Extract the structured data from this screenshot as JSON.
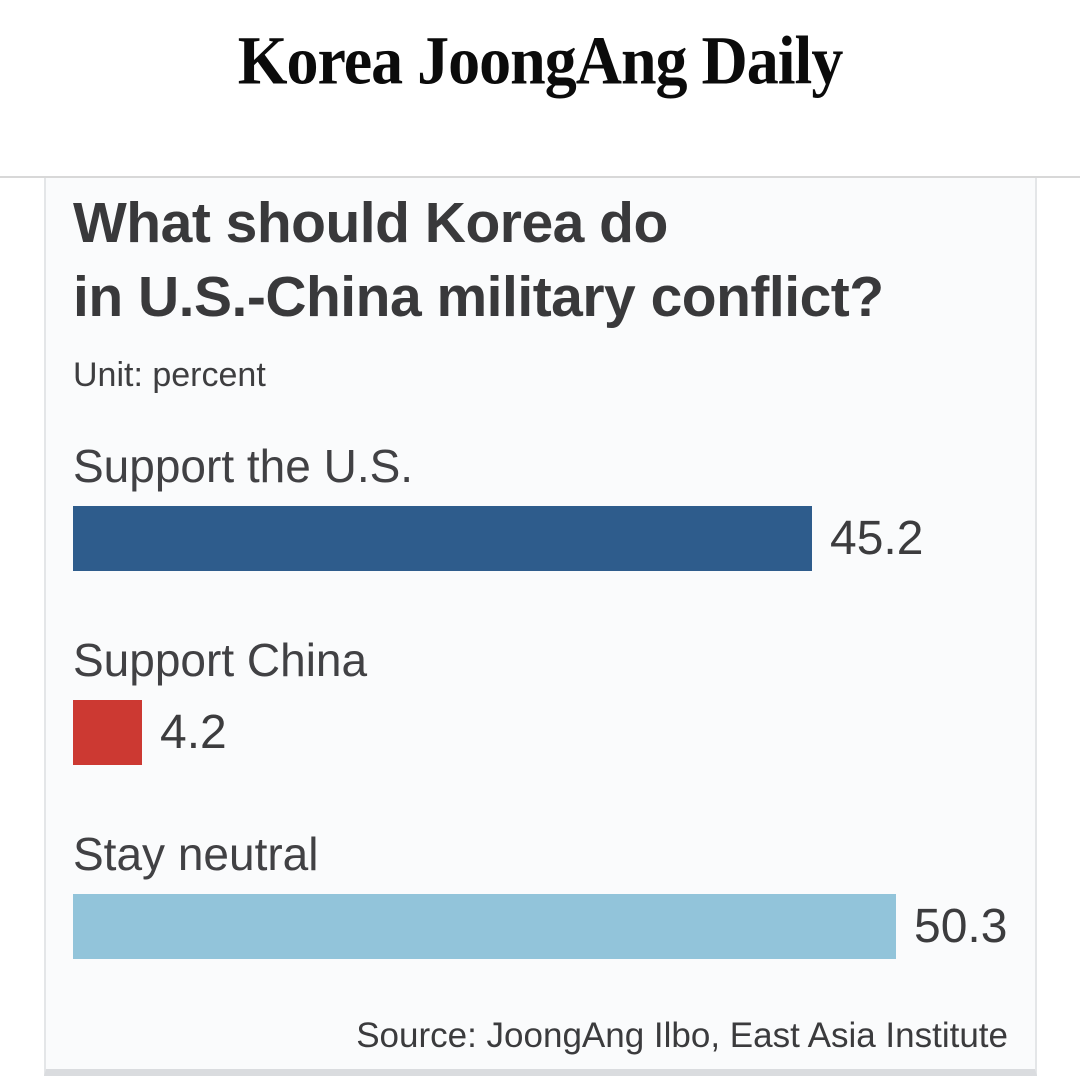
{
  "masthead": {
    "title": "Korea JoongAng Daily"
  },
  "chart_data": {
    "type": "bar",
    "orientation": "horizontal",
    "title_line1": "What should Korea do",
    "title_line2": "in U.S.-China military conflict?",
    "unit_label": "Unit: percent",
    "categories": [
      "Support the U.S.",
      "Support China",
      "Stay neutral"
    ],
    "values": [
      45.2,
      4.2,
      50.3
    ],
    "value_labels": [
      "45.2",
      "4.2",
      "50.3"
    ],
    "bar_colors": [
      "#2e5c8c",
      "#cc3932",
      "#92c4da"
    ],
    "xlim": [
      0,
      55
    ],
    "grid": false,
    "legend": false,
    "source": "Source: JoongAng Ilbo, East Asia Institute",
    "colors": {
      "panel_background": "#fafbfc",
      "text_dark": "#39393b",
      "rule_gray": "#d8d8d8"
    }
  }
}
